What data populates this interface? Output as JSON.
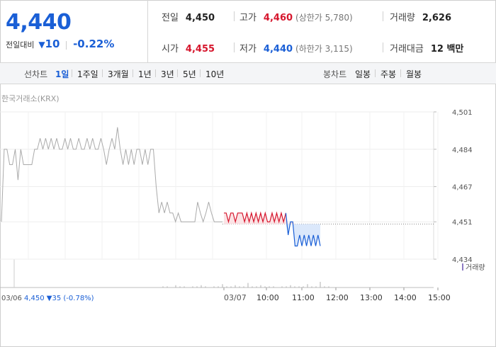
{
  "summary": {
    "price": "4,440",
    "change_label": "전일대비",
    "change_icon": "down-triangle-icon",
    "change_value": "10",
    "change_rate": "-0.22%",
    "prev_close_label": "전일",
    "prev_close": "4,450",
    "open_label": "시가",
    "open": "4,455",
    "high_label": "고가",
    "high": "4,460",
    "upper_limit": "(상한가 5,780)",
    "low_label": "저가",
    "low": "4,440",
    "lower_limit": "(하한가 3,115)",
    "volume_label": "거래량",
    "volume": "2,626",
    "amount_label": "거래대금",
    "amount": "12 백만"
  },
  "period_bar": {
    "line_label": "선차트",
    "line_periods": [
      "1일",
      "1주일",
      "3개월",
      "1년",
      "3년",
      "5년",
      "10년"
    ],
    "active_period": "1일",
    "candle_label": "봉차트",
    "candle_periods": [
      "일봉",
      "주봉",
      "월봉"
    ]
  },
  "source": "한국거래소(KRX)",
  "colors": {
    "up": "#d6162d",
    "down": "#1a5fd6",
    "prev_line": "#aaaaaa",
    "accent": "#1a5fd6"
  },
  "chart_data": {
    "type": "line",
    "y_ticks": [
      "4,501",
      "4,484",
      "4,467",
      "4,451",
      "4,434"
    ],
    "ylim": [
      4434,
      4501
    ],
    "baseline": 4450,
    "x_ticks": [
      "03/07",
      "10:00",
      "11:00",
      "12:00",
      "13:00",
      "14:00",
      "15:00"
    ],
    "prev_day": {
      "label": "03/06",
      "summary": "4,450 ▼35 (-0.78%)",
      "values": [
        4451,
        4484,
        4484,
        4477,
        4477,
        4484,
        4470,
        4484,
        4477,
        4477,
        4477,
        4477,
        4484,
        4484,
        4489,
        4484,
        4489,
        4484,
        4489,
        4484,
        4489,
        4484,
        4484,
        4489,
        4484,
        4489,
        4484,
        4484,
        4489,
        4484,
        4484,
        4489,
        4484,
        4489,
        4484,
        4484,
        4489,
        4484,
        4477,
        4484,
        4489,
        4484,
        4494,
        4484,
        4477,
        4484,
        4477,
        4484,
        4477,
        4484,
        4484,
        4477,
        4484,
        4477,
        4484,
        4484,
        4467,
        4455,
        4460,
        4455,
        4460,
        4455,
        4455,
        4451,
        4455,
        4451,
        4451,
        4451,
        4451,
        4451,
        4451,
        4460,
        4455,
        4451,
        4455,
        4460,
        4455,
        4451,
        4451,
        4451,
        4451
      ]
    },
    "today": {
      "label": "03/07",
      "values": [
        4455,
        4455,
        4451,
        4455,
        4455,
        4451,
        4455,
        4455,
        4455,
        4451,
        4455,
        4451,
        4455,
        4451,
        4455,
        4451,
        4455,
        4451,
        4455,
        4451,
        4451,
        4455,
        4451,
        4455,
        4451,
        4455,
        4451,
        4455,
        4445,
        4451,
        4451,
        4440,
        4440,
        4445,
        4440,
        4445,
        4440,
        4445,
        4440,
        4445,
        4440,
        4445,
        4440
      ]
    },
    "volume_label": "거래량",
    "volume": [
      1,
      1,
      0,
      2,
      1,
      1,
      0,
      1,
      1,
      2,
      1,
      0,
      1,
      1,
      3,
      1,
      1,
      2,
      1,
      1,
      4,
      1,
      1,
      2,
      1,
      1,
      1,
      0,
      1,
      1,
      2,
      1,
      1,
      1,
      3,
      1,
      1,
      5,
      1,
      1
    ]
  }
}
